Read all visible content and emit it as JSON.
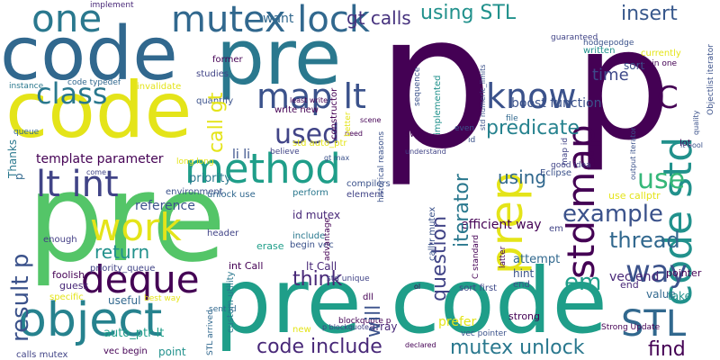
{
  "cloud": {
    "words": {
      "p1": "p",
      "p2": "p",
      "pre_main": "pre",
      "pre_code_bottom": "pre code",
      "code_top": "code",
      "pre_top": "pre",
      "code_mid": "code",
      "object": "object",
      "mutex_lock": "mutex lock",
      "one": "one",
      "method": "method",
      "lt_int": "lt int",
      "work": "work",
      "deque": "deque",
      "map_lt": "map lt",
      "know": "know",
      "used": "used",
      "class": "class",
      "stl": "STL",
      "way": "way",
      "example": "example",
      "thread": "thread",
      "use": "use",
      "em": "em",
      "c": "C",
      "using_stl": "using STL",
      "insert": "insert",
      "gt_calls": "gt calls",
      "predicate": "predicate",
      "boost_function": "boost function",
      "time": "time",
      "using_2": "using",
      "return": "return",
      "code_include": "code include",
      "mutex_unlock": "mutex unlock",
      "find": "find",
      "think": "think",
      "template_parameter": "template parameter",
      "reference": "reference",
      "priority": "priority",
      "auto_ptr_lt": "auto_ptr lt",
      "vec_begin": "vec begin",
      "calls_mutex": "calls mutex",
      "point": "point",
      "useful": "useful",
      "foolish": "foolish",
      "guess": "guess",
      "specific": "specific",
      "enough": "enough",
      "header": "header",
      "int_call": "int Call",
      "erase": "erase",
      "custom_utility": "custom utility",
      "lt_call": "lt Call",
      "begin_vec": "begin vec",
      "include": "include",
      "id_mutex": "id mutex",
      "li_li": "li li",
      "write_new": "write new",
      "least_write": "least write",
      "believe": "believe",
      "std_auto_ptr": "std auto_ptr",
      "gt_max": "gt max",
      "need": "need",
      "unlock_use": "unlock use",
      "perform": "perform",
      "element": "element",
      "compilers": "compilers",
      "environment": "environment",
      "priority_queue": "priority_queue",
      "studies": "studies",
      "quantify": "quantify",
      "instance": "instance",
      "queue": "queue",
      "code_typedef": "code typedef",
      "former": "former",
      "implement": "implement",
      "want": "want",
      "invalidate": "invalidate",
      "long_long": "long long",
      "come": "come",
      "best_way": "best way",
      "dll": "dll",
      "array": "array",
      "prefer": "prefer",
      "attempt": "attempt",
      "efficient_way": "efficient way",
      "sort_first": "sort first",
      "hint": "hint",
      "end": "end",
      "vec_end": "vec end",
      "end_2": "end",
      "value": "value",
      "take": "take",
      "strong": "strong",
      "pointer": "pointer",
      "sort": "sort",
      "eclipse": "Eclipse",
      "good_idea": "good idea",
      "lot": "lot",
      "written": "written",
      "currently": "currently",
      "guaranteed": "guaranteed",
      "hodgepodge": "hodgepodge",
      "file": "file",
      "swap": "swap",
      "even": "even",
      "historical_reasons": "historical reasons",
      "sequence": "sequence",
      "scene": "scene",
      "better": "better",
      "understand": "understand",
      "latter": "latter",
      "use_callptr": "use callptr",
      "em_2": "em",
      "c_std": "C standard",
      "advantage": "advantage",
      "new": "new",
      "declared": "declared",
      "blockquote_p": "blockquote p",
      "p_blockquote": "p blockquote",
      "ol": "ol",
      "thanks": "Thanks",
      "p_small": "p",
      "result_p": "result p",
      "question": "question",
      "iterator": "iterator",
      "prep": "prep",
      "std_map": "std map",
      "code_std": "code std",
      "call_gt": "call gt",
      "will": "will",
      "calltr_mutex": "calltr mutex",
      "std_numeric_limits": "std numeric_limits",
      "id": "id",
      "implemented": "implemented",
      "constructor": "constructor",
      "map_id": "map id",
      "output_iterator": "output iterator",
      "objectlist_iterator": "Objectlist iterator",
      "std_unique": "std unique",
      "sent_id": "sent id",
      "stl_arrived": "STL arrived",
      "vec_pointer": "vec pointer",
      "strong_update": "Strong Update",
      "main_one": "main one",
      "quality": "quality",
      "lt_bool": "lt bool"
    }
  }
}
